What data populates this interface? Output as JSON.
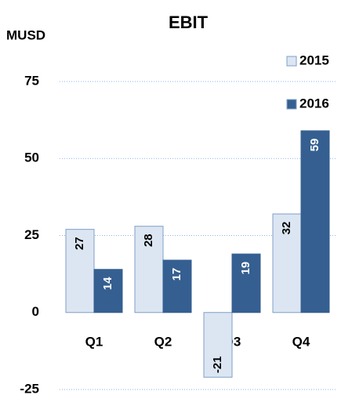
{
  "chart_data": {
    "type": "bar",
    "title": "EBIT",
    "y_label": "MUSD",
    "categories": [
      "Q1",
      "Q2",
      "Q3",
      "Q4"
    ],
    "series": [
      {
        "name": "2015",
        "color": "#dce6f2",
        "values": [
          27,
          28,
          -21,
          32
        ]
      },
      {
        "name": "2016",
        "color": "#355f91",
        "values": [
          14,
          17,
          19,
          59
        ]
      }
    ],
    "ylim": [
      -25,
      75
    ],
    "yticks": [
      -25,
      0,
      25,
      50,
      75
    ],
    "grid": true,
    "legend": "top-right"
  }
}
